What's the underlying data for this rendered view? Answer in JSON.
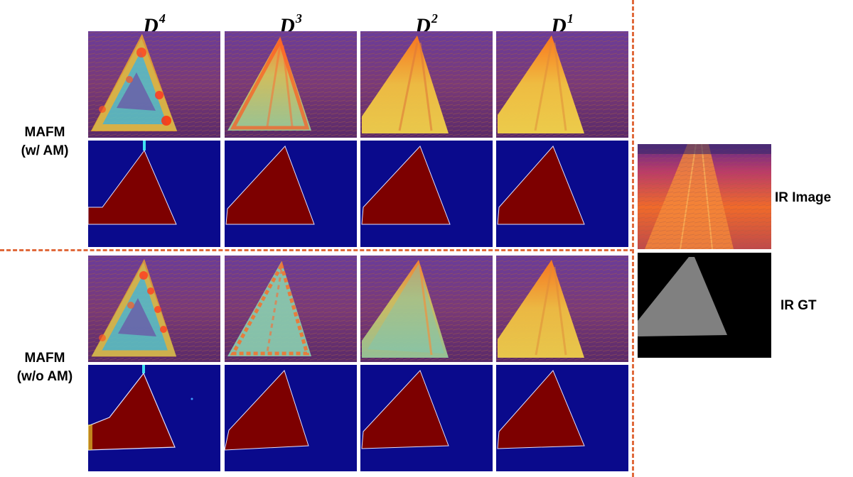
{
  "columns": [
    {
      "base": "D",
      "sup": "4"
    },
    {
      "base": "D",
      "sup": "3"
    },
    {
      "base": "D",
      "sup": "2"
    },
    {
      "base": "D",
      "sup": "1"
    }
  ],
  "rows": [
    {
      "line1": "MAFM",
      "line2": "(w/ AM)"
    },
    {
      "line1": "MAFM",
      "line2": "(w/o AM)"
    }
  ],
  "side": {
    "ir_image_label": "IR Image",
    "ir_gt_label": "IR GT"
  },
  "colors": {
    "divider": "#e06a3c",
    "mask_background": "#0a0a8c",
    "mask_foreground": "#7d0000",
    "gt_background": "#000000",
    "gt_foreground": "#808080"
  }
}
